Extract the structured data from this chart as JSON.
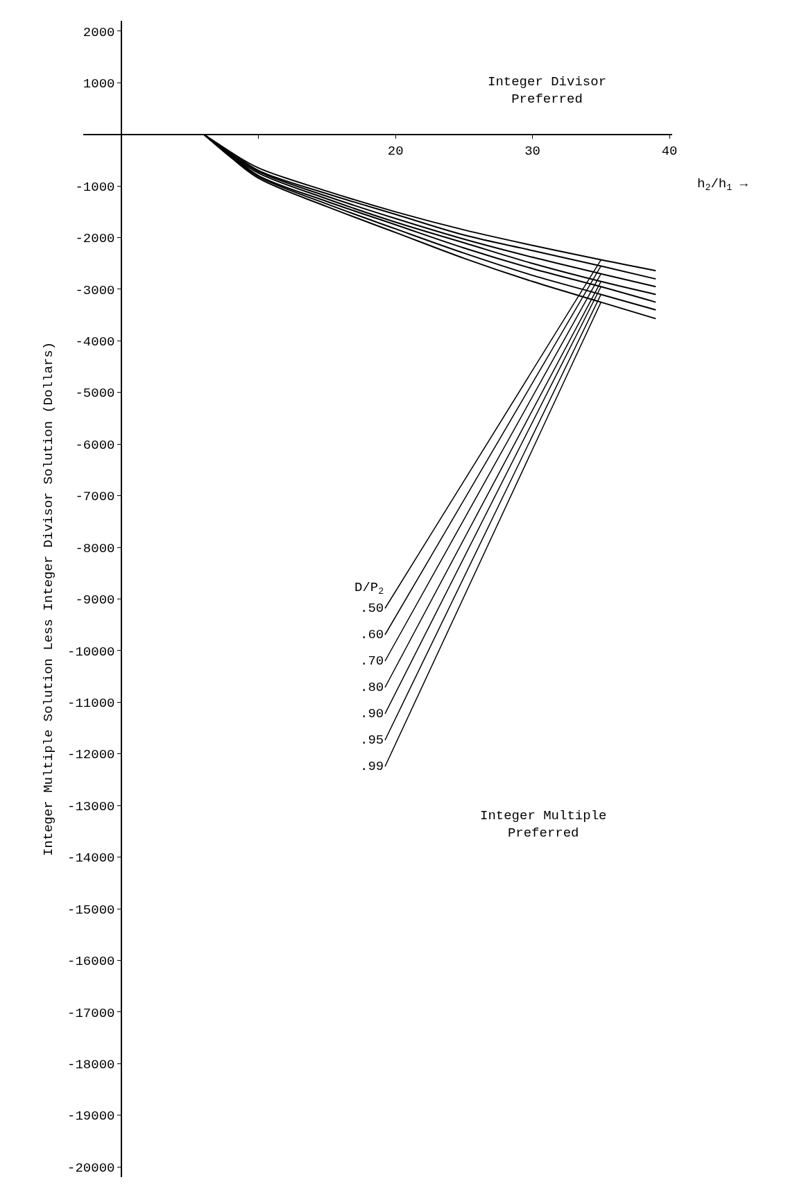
{
  "chart_data": {
    "type": "line",
    "xlabel": "h$_{2}$/h$_{1}$ →",
    "ylabel": "Integer Multiple Solution Less Integer Divisor Solution (Dollars)",
    "legend_title": "D/P$_{2}$",
    "x": [
      6,
      8,
      10,
      15,
      20,
      25,
      30,
      35,
      39
    ],
    "series": [
      {
        "name": ".50",
        "color": "#000000",
        "values": [
          0,
          -350,
          -650,
          -1100,
          -1500,
          -1850,
          -2150,
          -2430,
          -2640
        ]
      },
      {
        "name": ".60",
        "color": "#000000",
        "values": [
          0,
          -350,
          -700,
          -1150,
          -1550,
          -1950,
          -2250,
          -2550,
          -2800
        ]
      },
      {
        "name": ".70",
        "color": "#000000",
        "values": [
          0,
          -380,
          -720,
          -1200,
          -1630,
          -2030,
          -2380,
          -2700,
          -2950
        ]
      },
      {
        "name": ".80",
        "color": "#000000",
        "values": [
          0,
          -400,
          -750,
          -1250,
          -1700,
          -2100,
          -2500,
          -2850,
          -3100
        ]
      },
      {
        "name": ".90",
        "color": "#000000",
        "values": [
          0,
          -400,
          -800,
          -1300,
          -1750,
          -2200,
          -2600,
          -2950,
          -3250
        ]
      },
      {
        "name": ".95",
        "color": "#000000",
        "values": [
          0,
          -430,
          -820,
          -1350,
          -1830,
          -2300,
          -2730,
          -3100,
          -3400
        ]
      },
      {
        "name": ".99",
        "color": "#000000",
        "values": [
          0,
          -450,
          -850,
          -1400,
          -1900,
          -2400,
          -2850,
          -3250,
          -3570
        ]
      }
    ],
    "annotations": [
      "Integer Divisor Preferred",
      "Integer Multiple Preferred"
    ],
    "xlim": [
      -2.8,
      40.2
    ],
    "xticks": [
      {
        "value": 10,
        "label": null
      },
      20,
      30,
      40
    ],
    "ylim": [
      -20200,
      2200
    ],
    "yticks": [
      2000,
      1000,
      {
        "value": 0,
        "label": null
      },
      -1000,
      -2000,
      -3000,
      -4000,
      -5000,
      -6000,
      -7000,
      -8000,
      -9000,
      -10000,
      -11000,
      -12000,
      -13000,
      -14000,
      -15000,
      -16000,
      -17000,
      -18000,
      -19000,
      -20000
    ],
    "legend": false,
    "marker": "none",
    "line_style": "solid"
  }
}
